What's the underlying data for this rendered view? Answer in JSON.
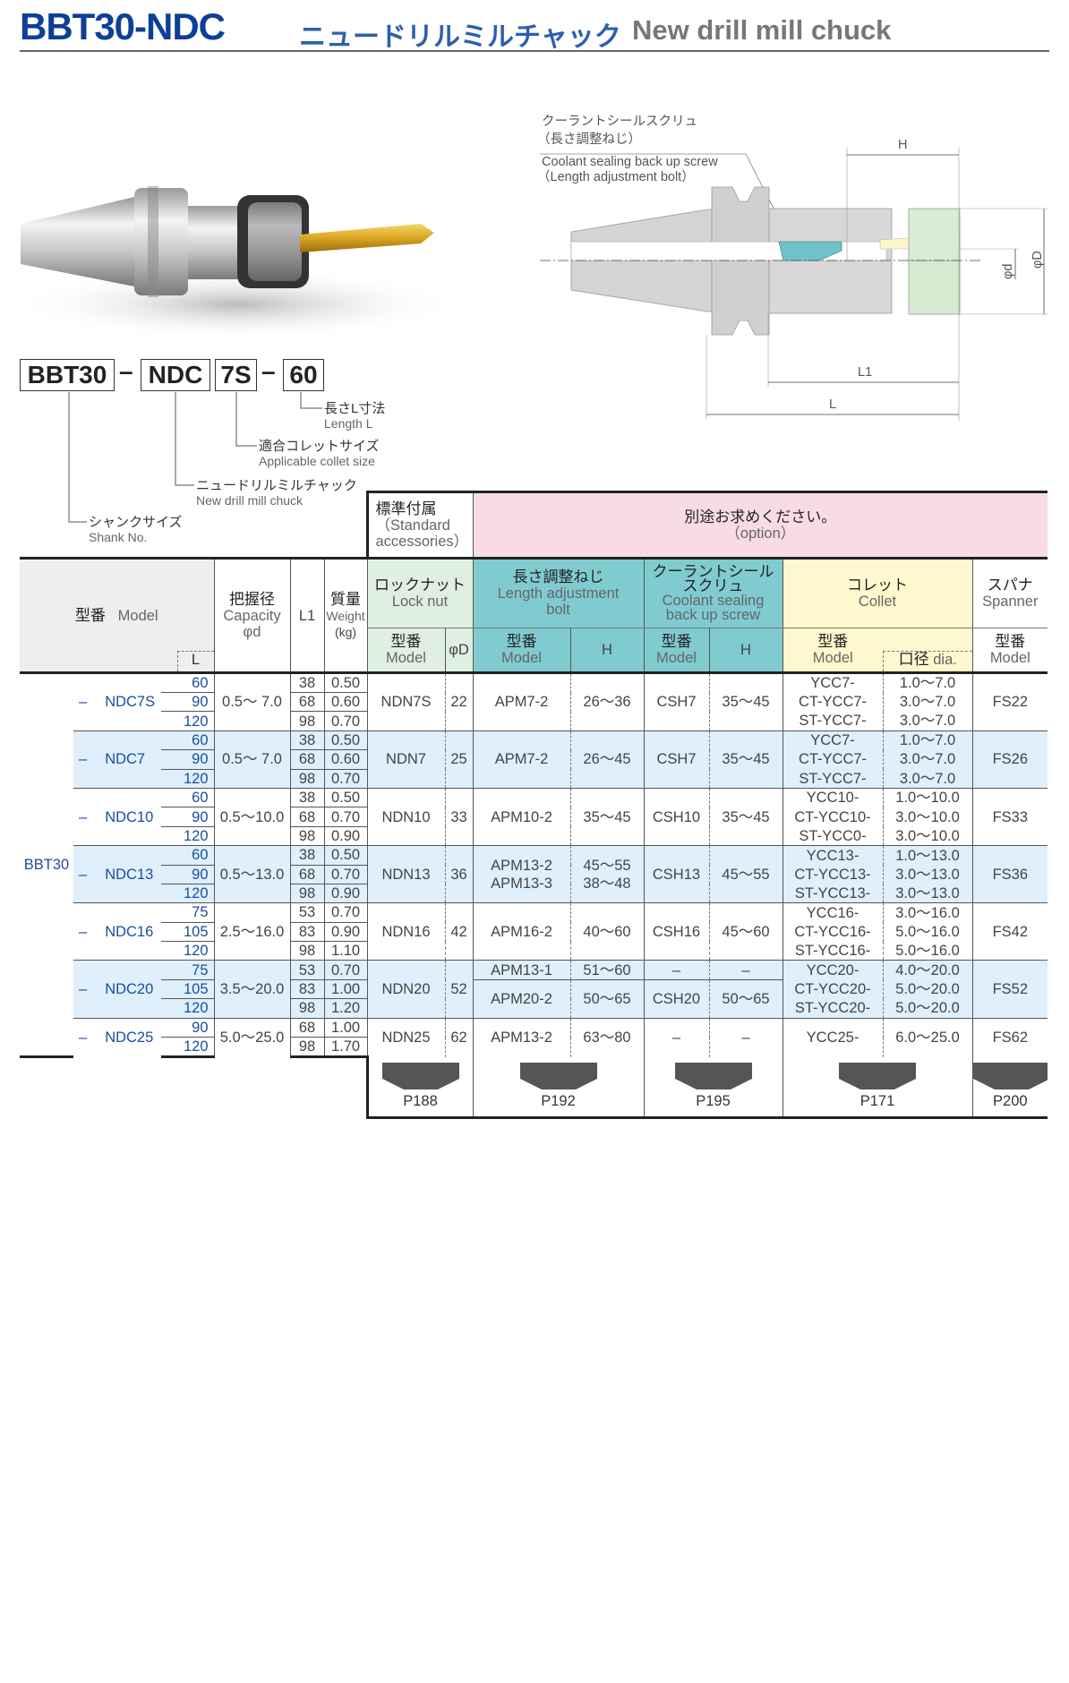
{
  "header": {
    "code": "BBT30-NDC",
    "title_jp": "ニュードリルミルチャック",
    "title_en": "New drill mill chuck"
  },
  "diagram": {
    "screw_label_jp": "クーラントシールスクリュ",
    "screw_label_jp2": "（長さ調整ねじ）",
    "screw_label_en": "Coolant sealing back up  screw",
    "screw_label_en2": "（Length adjustment bolt）",
    "dim_H": "H",
    "dim_L1": "L1",
    "dim_L": "L",
    "dim_d": "φd",
    "dim_D": "φD",
    "colors": {
      "body": "#d4d4d4",
      "screw": "#6fc3c8",
      "collet": "#fdf6c8",
      "nut": "#d9ecd6"
    }
  },
  "part_code": {
    "boxes": [
      "BBT30",
      "NDC",
      "7S",
      "60"
    ],
    "dash": "–",
    "callouts": [
      {
        "jp": "長さL寸法",
        "en": "Length L"
      },
      {
        "jp": "適合コレットサイズ",
        "en": "Applicable collet size"
      },
      {
        "jp": "ニュードリルミルチャック",
        "en": "New drill mill chuck"
      },
      {
        "jp": "シャンクサイズ",
        "en": "Shank No."
      }
    ]
  },
  "table": {
    "standard_jp": "標準付属",
    "standard_en": "（Standard",
    "standard_en2": " accessories）",
    "option_jp": "別途お求めください。",
    "option_en": "（option）",
    "model_jp": "型番",
    "model_en": "Model",
    "L_label": "L",
    "capacity_jp": "把握径",
    "capacity_en": "Capacity",
    "capacity_sym": "φd",
    "L1_label": "L1",
    "weight_jp": "質量",
    "weight_en": "Weight",
    "weight_unit": "(kg)",
    "locknut_jp": "ロックナット",
    "locknut_en": "Lock nut",
    "bolt_jp": "長さ調整ねじ",
    "bolt_en": "Length adjustment",
    "bolt_en2": "bolt",
    "coolant_jp": "クーラントシール",
    "coolant_jp2": "スクリュ",
    "coolant_en": "Coolant sealing",
    "coolant_en2": "back up screw",
    "collet_jp": "コレット",
    "collet_en": "Collet",
    "spanner_jp": "スパナ",
    "spanner_en": "Spanner",
    "phiD_label": "φD",
    "H_label": "H",
    "dia_jp": "口径",
    "dia_en": "dia.",
    "shank": "BBT30",
    "dash": "–",
    "colors": {
      "model_text": "#1a4ea0",
      "lock_nut": "#dfefe2",
      "bolt": "#7fcbd0",
      "collet": "#fff8cf",
      "option": "#f9dbe7",
      "alt_row": "#dfeffb"
    },
    "groups": [
      {
        "model": "NDC7S",
        "capacity": "0.5〜 7.0",
        "rows": [
          {
            "L": "60",
            "L1": "38",
            "weight": "0.50"
          },
          {
            "L": "90",
            "L1": "68",
            "weight": "0.60"
          },
          {
            "L": "120",
            "L1": "98",
            "weight": "0.70"
          }
        ],
        "lock_nut": "NDN7S",
        "phiD": "22",
        "sets": [
          {
            "L": [
              "60",
              "90",
              "120"
            ],
            "bolt_models": [
              "APM7-2"
            ],
            "bolt_H": [
              "26〜36"
            ],
            "coolant_model": "CSH7",
            "coolant_H": "35〜45"
          }
        ],
        "collets": [
          {
            "model": "YCC7-",
            "dia": "1.0〜7.0"
          },
          {
            "model": "CT-YCC7-",
            "dia": "3.0〜7.0"
          },
          {
            "model": "ST-YCC7-",
            "dia": "3.0〜7.0"
          }
        ],
        "spanner": "FS22"
      },
      {
        "model": "NDC7",
        "capacity": "0.5〜 7.0",
        "rows": [
          {
            "L": "60",
            "L1": "38",
            "weight": "0.50"
          },
          {
            "L": "90",
            "L1": "68",
            "weight": "0.60"
          },
          {
            "L": "120",
            "L1": "98",
            "weight": "0.70"
          }
        ],
        "lock_nut": "NDN7",
        "phiD": "25",
        "sets": [
          {
            "L": [
              "60",
              "90",
              "120"
            ],
            "bolt_models": [
              "APM7-2"
            ],
            "bolt_H": [
              "26〜45"
            ],
            "coolant_model": "CSH7",
            "coolant_H": "35〜45"
          }
        ],
        "collets": [
          {
            "model": "YCC7-",
            "dia": "1.0〜7.0"
          },
          {
            "model": "CT-YCC7-",
            "dia": "3.0〜7.0"
          },
          {
            "model": "ST-YCC7-",
            "dia": "3.0〜7.0"
          }
        ],
        "spanner": "FS26"
      },
      {
        "model": "NDC10",
        "capacity": "0.5〜10.0",
        "rows": [
          {
            "L": "60",
            "L1": "38",
            "weight": "0.50"
          },
          {
            "L": "90",
            "L1": "68",
            "weight": "0.70"
          },
          {
            "L": "120",
            "L1": "98",
            "weight": "0.90"
          }
        ],
        "lock_nut": "NDN10",
        "phiD": "33",
        "sets": [
          {
            "L": [
              "60",
              "90",
              "120"
            ],
            "bolt_models": [
              "APM10-2"
            ],
            "bolt_H": [
              "35〜45"
            ],
            "coolant_model": "CSH10",
            "coolant_H": "35〜45"
          }
        ],
        "collets": [
          {
            "model": "YCC10-",
            "dia": "1.0〜10.0"
          },
          {
            "model": "CT-YCC10-",
            "dia": "3.0〜10.0"
          },
          {
            "model": "ST-YCC0-",
            "dia": "3.0〜10.0"
          }
        ],
        "spanner": "FS33"
      },
      {
        "model": "NDC13",
        "capacity": "0.5〜13.0",
        "rows": [
          {
            "L": "60",
            "L1": "38",
            "weight": "0.50"
          },
          {
            "L": "90",
            "L1": "68",
            "weight": "0.70"
          },
          {
            "L": "120",
            "L1": "98",
            "weight": "0.90"
          }
        ],
        "lock_nut": "NDN13",
        "phiD": "36",
        "sets": [
          {
            "L": [
              "60",
              "90",
              "120"
            ],
            "bolt_models": [
              "APM13-2",
              "APM13-3"
            ],
            "bolt_H": [
              "45〜55",
              "38〜48"
            ],
            "coolant_model": "CSH13",
            "coolant_H": "45〜55"
          }
        ],
        "collets": [
          {
            "model": "YCC13-",
            "dia": "1.0〜13.0"
          },
          {
            "model": "CT-YCC13-",
            "dia": "3.0〜13.0"
          },
          {
            "model": "ST-YCC13-",
            "dia": "3.0〜13.0"
          }
        ],
        "spanner": "FS36"
      },
      {
        "model": "NDC16",
        "capacity": "2.5〜16.0",
        "rows": [
          {
            "L": "75",
            "L1": "53",
            "weight": "0.70"
          },
          {
            "L": "105",
            "L1": "83",
            "weight": "0.90"
          },
          {
            "L": "120",
            "L1": "98",
            "weight": "1.10"
          }
        ],
        "lock_nut": "NDN16",
        "phiD": "42",
        "sets": [
          {
            "L": [
              "75",
              "105",
              "120"
            ],
            "bolt_models": [
              "APM16-2"
            ],
            "bolt_H": [
              "40〜60"
            ],
            "coolant_model": "CSH16",
            "coolant_H": "45〜60"
          }
        ],
        "collets": [
          {
            "model": "YCC16-",
            "dia": "3.0〜16.0"
          },
          {
            "model": "CT-YCC16-",
            "dia": "5.0〜16.0"
          },
          {
            "model": "ST-YCC16-",
            "dia": "5.0〜16.0"
          }
        ],
        "spanner": "FS42"
      },
      {
        "model": "NDC20",
        "capacity": "3.5〜20.0",
        "rows": [
          {
            "L": "75",
            "L1": "53",
            "weight": "0.70"
          },
          {
            "L": "105",
            "L1": "83",
            "weight": "1.00"
          },
          {
            "L": "120",
            "L1": "98",
            "weight": "1.20"
          }
        ],
        "lock_nut": "NDN20",
        "phiD": "52",
        "sets": [
          {
            "L": [
              "75"
            ],
            "bolt_models": [
              "APM13-1"
            ],
            "bolt_H": [
              "51〜60"
            ],
            "coolant_model": "–",
            "coolant_H": "–"
          },
          {
            "L": [
              "105",
              "120"
            ],
            "bolt_models": [
              "APM20-2"
            ],
            "bolt_H": [
              "50〜65"
            ],
            "coolant_model": "CSH20",
            "coolant_H": "50〜65"
          }
        ],
        "collets": [
          {
            "model": "YCC20-",
            "dia": "4.0〜20.0"
          },
          {
            "model": "CT-YCC20-",
            "dia": "5.0〜20.0"
          },
          {
            "model": "ST-YCC20-",
            "dia": "5.0〜20.0"
          }
        ],
        "spanner": "FS52"
      },
      {
        "model": "NDC25",
        "capacity": "5.0〜25.0",
        "rows": [
          {
            "L": "90",
            "L1": "68",
            "weight": "1.00"
          },
          {
            "L": "120",
            "L1": "98",
            "weight": "1.70"
          }
        ],
        "lock_nut": "NDN25",
        "phiD": "62",
        "sets": [
          {
            "L": [
              "90",
              "120"
            ],
            "bolt_models": [
              "APM13-2"
            ],
            "bolt_H": [
              "63〜80"
            ],
            "coolant_model": "–",
            "coolant_H": "–"
          }
        ],
        "collets": [
          {
            "model": "YCC25-",
            "dia": "6.0〜25.0"
          }
        ],
        "spanner": "FS62"
      }
    ],
    "page_refs": [
      "P188",
      "P192",
      "P195",
      "P171",
      "P200"
    ]
  }
}
